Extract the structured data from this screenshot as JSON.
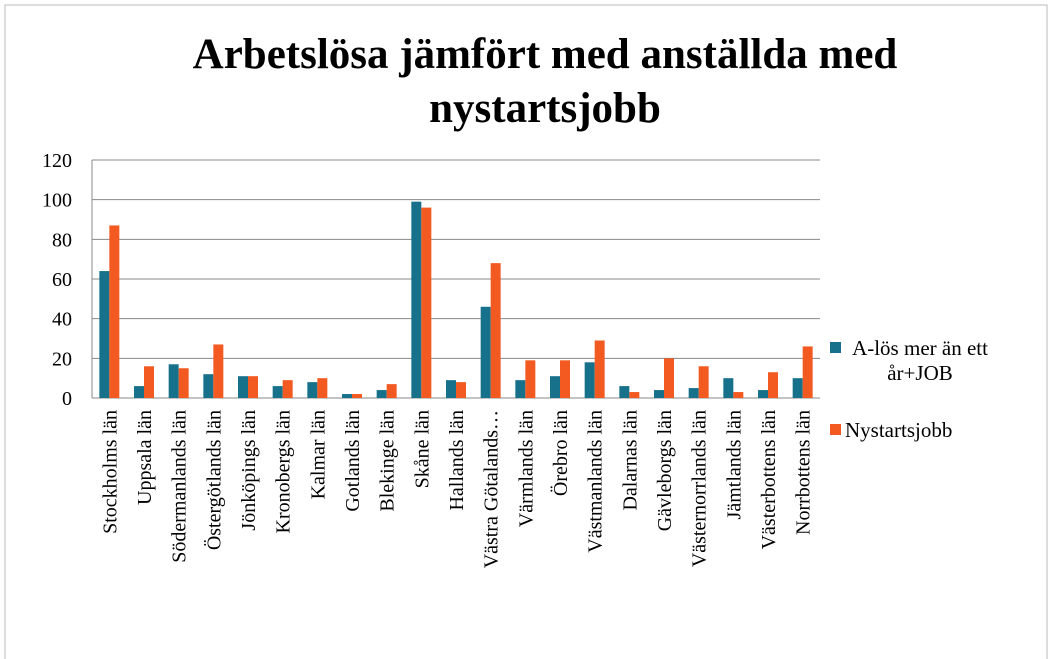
{
  "chart_data": {
    "type": "bar",
    "title": "Arbetslösa jämfört med anställda med nystartsjobb",
    "categories": [
      "Stockholms län",
      "Uppsala län",
      "Södermanlands län",
      "Östergötlands län",
      "Jönköpings län",
      "Kronobergs län",
      "Kalmar län",
      "Gotlands län",
      "Blekinge län",
      "Skåne län",
      "Hallands län",
      "Västra Götalands…",
      "Värmlands län",
      "Örebro län",
      "Västmanlands län",
      "Dalarnas län",
      "Gävleborgs län",
      "Västernorrlands län",
      "Jämtlands län",
      "Västerbottens län",
      "Norrbottens län"
    ],
    "series": [
      {
        "name": "A-lös mer än ett år+JOB",
        "color": "#17718a",
        "values": [
          64,
          6,
          17,
          12,
          11,
          6,
          8,
          2,
          4,
          99,
          9,
          46,
          9,
          11,
          18,
          6,
          4,
          5,
          10,
          4,
          10
        ]
      },
      {
        "name": "Nystartsjobb",
        "color": "#f25a22",
        "values": [
          87,
          16,
          15,
          27,
          11,
          9,
          10,
          2,
          7,
          96,
          8,
          68,
          19,
          19,
          29,
          3,
          20,
          16,
          3,
          13,
          26
        ]
      }
    ],
    "ylim": [
      0,
      120
    ],
    "yticks": [
      0,
      20,
      40,
      60,
      80,
      100,
      120
    ],
    "grid": true,
    "legend": "right"
  }
}
